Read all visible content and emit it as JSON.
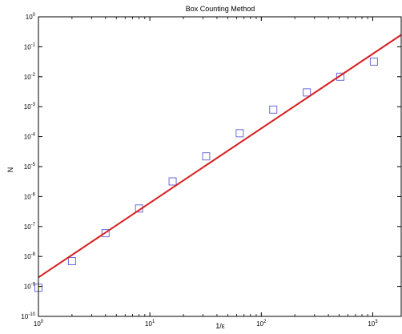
{
  "chart_data": {
    "type": "scatter",
    "title": "Box Counting Method",
    "xlabel": "1/ε",
    "ylabel": "N",
    "x_scale": "log",
    "y_scale": "log",
    "xlim": [
      1,
      1800
    ],
    "ylim": [
      1e-10,
      1
    ],
    "grid": false,
    "x_ticks": [
      {
        "value": 1,
        "base": "10",
        "exp": "0"
      },
      {
        "value": 10,
        "base": "10",
        "exp": "1"
      },
      {
        "value": 100,
        "base": "10",
        "exp": "2"
      },
      {
        "value": 1000,
        "base": "10",
        "exp": "3"
      }
    ],
    "y_ticks": [
      {
        "value": 1,
        "base": "10",
        "exp": "0"
      },
      {
        "value": 0.1,
        "base": "10",
        "exp": "-1"
      },
      {
        "value": 0.01,
        "base": "10",
        "exp": "-2"
      },
      {
        "value": 0.001,
        "base": "10",
        "exp": "-3"
      },
      {
        "value": 0.0001,
        "base": "10",
        "exp": "-4"
      },
      {
        "value": 1e-05,
        "base": "10",
        "exp": "-5"
      },
      {
        "value": 1e-06,
        "base": "10",
        "exp": "-6"
      },
      {
        "value": 1e-07,
        "base": "10",
        "exp": "-7"
      },
      {
        "value": 1e-08,
        "base": "10",
        "exp": "-8"
      },
      {
        "value": 1e-09,
        "base": "10",
        "exp": "-9"
      },
      {
        "value": 1e-10,
        "base": "10",
        "exp": "-10"
      }
    ],
    "series": [
      {
        "kind": "markers",
        "marker": "square",
        "color": "#6b6bd6",
        "x": [
          1,
          2,
          4,
          8,
          16,
          32,
          64,
          128,
          256,
          512,
          1024
        ],
        "y": [
          9e-10,
          7e-09,
          6e-08,
          4e-07,
          3.2e-06,
          2.2e-05,
          0.00013,
          0.0008,
          0.003,
          0.01,
          0.032
        ]
      },
      {
        "kind": "fit-line",
        "color": "#d62020",
        "x": [
          1,
          1800
        ],
        "y": [
          2e-09,
          0.25
        ]
      }
    ]
  }
}
